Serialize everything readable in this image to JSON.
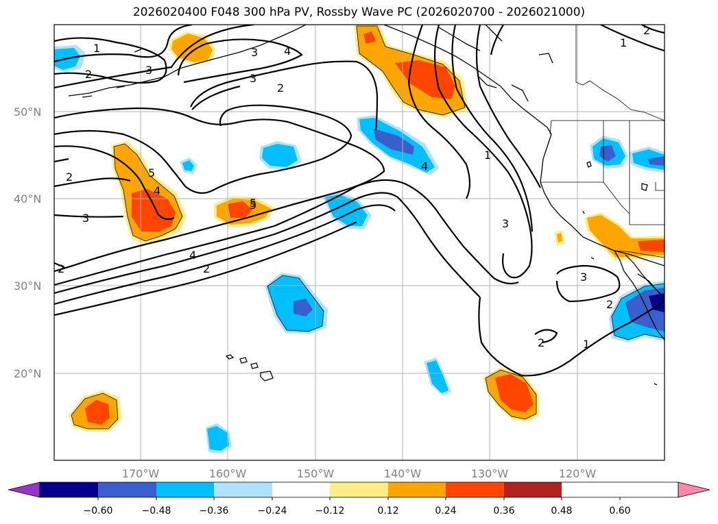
{
  "title": "2026020400 F048 300 hPa PV, Rossby Wave PC (2026020700 - 2026021000)",
  "lat_labels": [
    "50°N",
    "40°N",
    "30°N",
    "20°N"
  ],
  "lon_labels": [
    "170°W",
    "160°W",
    "150°W",
    "140°W",
    "130°W",
    "120°W"
  ],
  "colorbar": {
    "colors": [
      "#9933cc",
      "#00008b",
      "#3a5fcd",
      "#00bfff",
      "#b0e2ff",
      "#ffffff",
      "#ffee88",
      "#ffa500",
      "#ff4500",
      "#b22222",
      "#ff88aa"
    ],
    "ticks": [
      "−0.60",
      "−0.48",
      "−0.36",
      "−0.24",
      "−0.12",
      "0.12",
      "0.24",
      "0.36",
      "0.48",
      "0.60"
    ]
  },
  "contour_labels": [
    "1",
    "2",
    "3",
    "2",
    "3",
    "4",
    "2",
    "5",
    "4",
    "3",
    "2",
    "5",
    "4",
    "2",
    "5",
    "4",
    "1",
    "3",
    "3",
    "2",
    "1",
    "2",
    "1",
    "2",
    "3"
  ]
}
